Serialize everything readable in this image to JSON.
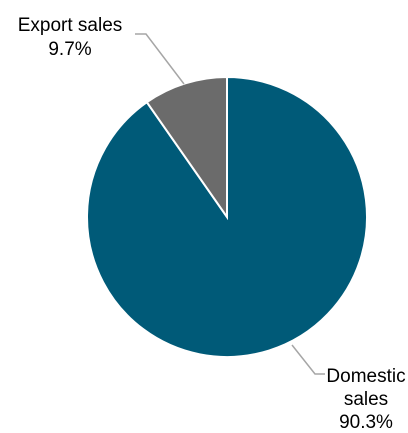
{
  "chart_data": {
    "type": "pie",
    "title": "",
    "slices": [
      {
        "label_lines": [
          "Domestic",
          "sales"
        ],
        "value": 90.3,
        "value_label": "90.3%",
        "color": "#005a78"
      },
      {
        "label_lines": [
          "Export sales"
        ],
        "value": 9.7,
        "value_label": "9.7%",
        "color": "#6b6b6b"
      }
    ],
    "start_angle": "12 o'clock",
    "direction": "clockwise",
    "legend": "none",
    "labels": "outside with leader lines"
  }
}
